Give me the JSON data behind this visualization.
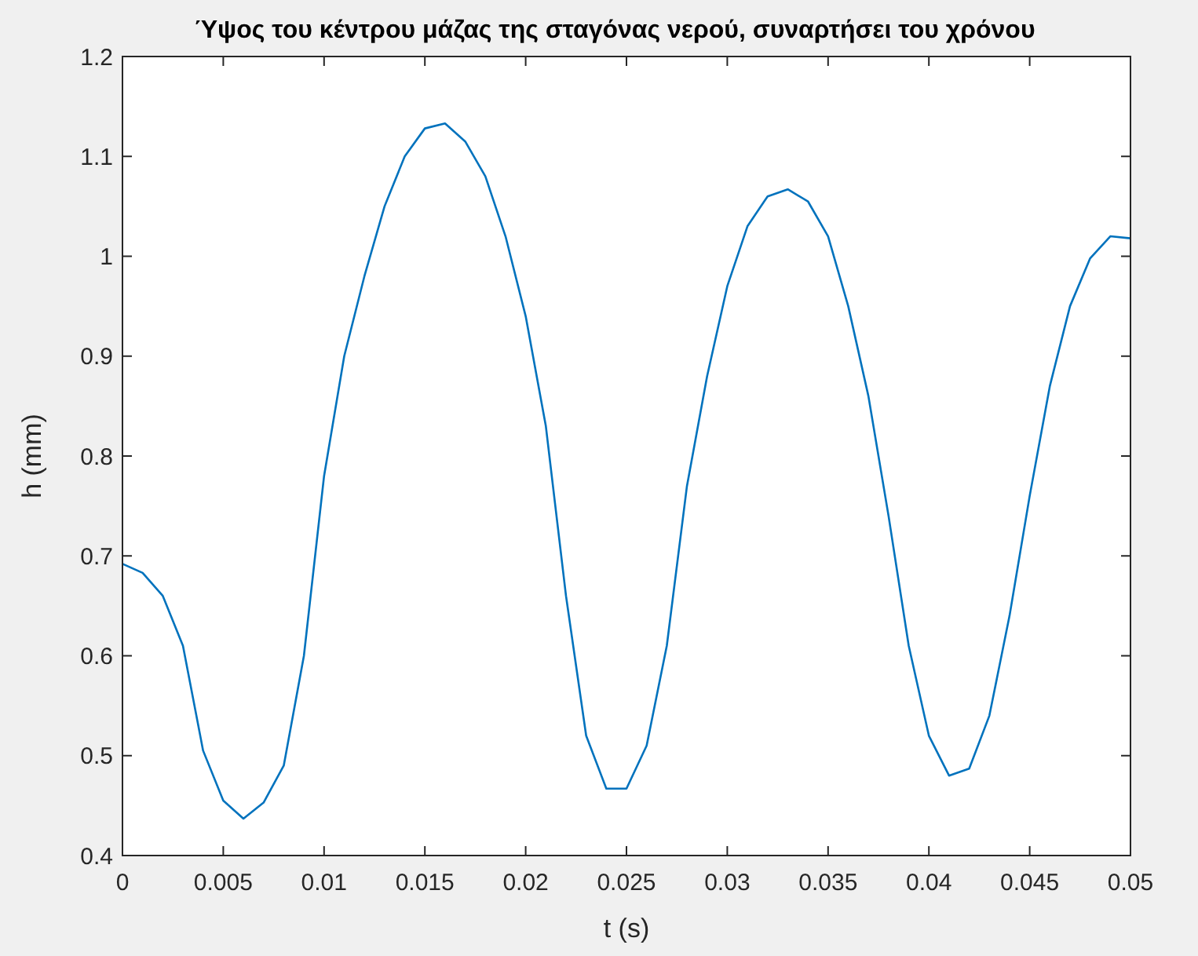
{
  "chart_data": {
    "type": "line",
    "title": "Ύψος του κέντρου μάζας της σταγόνας νερού, συναρτήσει του χρόνου",
    "xlabel": "t (s)",
    "ylabel": "h (mm)",
    "x": [
      0,
      0.001,
      0.002,
      0.003,
      0.004,
      0.005,
      0.006,
      0.007,
      0.008,
      0.009,
      0.01,
      0.011,
      0.012,
      0.013,
      0.014,
      0.015,
      0.016,
      0.017,
      0.018,
      0.019,
      0.02,
      0.021,
      0.022,
      0.023,
      0.024,
      0.025,
      0.026,
      0.027,
      0.028,
      0.029,
      0.03,
      0.031,
      0.032,
      0.033,
      0.034,
      0.035,
      0.036,
      0.037,
      0.038,
      0.039,
      0.04,
      0.041,
      0.042,
      0.043,
      0.044,
      0.045,
      0.046,
      0.047,
      0.048,
      0.049,
      0.05
    ],
    "series": [
      {
        "color": "#0072bd",
        "values": [
          0.692,
          0.683,
          0.66,
          0.61,
          0.505,
          0.455,
          0.437,
          0.453,
          0.49,
          0.6,
          0.78,
          0.9,
          0.98,
          1.05,
          1.1,
          1.128,
          1.133,
          1.115,
          1.08,
          1.02,
          0.94,
          0.83,
          0.66,
          0.52,
          0.467,
          0.467,
          0.51,
          0.61,
          0.77,
          0.88,
          0.97,
          1.03,
          1.06,
          1.067,
          1.055,
          1.02,
          0.95,
          0.86,
          0.74,
          0.61,
          0.52,
          0.48,
          0.487,
          0.54,
          0.64,
          0.76,
          0.87,
          0.95,
          0.998,
          1.02,
          1.018
        ]
      }
    ],
    "xlim": [
      0,
      0.05
    ],
    "ylim": [
      0.4,
      1.2
    ],
    "xticks": [
      0,
      0.005,
      0.01,
      0.015,
      0.02,
      0.025,
      0.03,
      0.035,
      0.04,
      0.045,
      0.05
    ],
    "yticks": [
      0.4,
      0.5,
      0.6,
      0.7,
      0.8,
      0.9,
      1,
      1.1,
      1.2
    ],
    "grid": false,
    "marker": "none",
    "line_style": "solid"
  }
}
